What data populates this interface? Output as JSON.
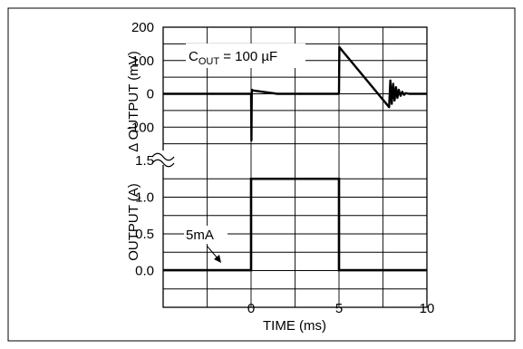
{
  "chart_data": [
    {
      "type": "line",
      "ylabel": "Δ OUTPUT (mV)",
      "annotation": {
        "main": "C",
        "sub": "OUT",
        "rest": " = 100 µF"
      },
      "xlim": [
        -5,
        10
      ],
      "ylim": [
        -200,
        200
      ],
      "yticks": [
        200,
        100,
        0,
        -100
      ],
      "ytick_labels": [
        "200",
        "100",
        "0",
        "-100"
      ],
      "grid": true,
      "series": [
        {
          "x": [
            -5,
            -0.05,
            0,
            0.02,
            0.04,
            0.06,
            0.1,
            1.5,
            4.98,
            5.0,
            5.02,
            7.85,
            7.92,
            8.0,
            8.08,
            8.16,
            8.24,
            8.32,
            8.4,
            8.5,
            8.6,
            8.7,
            8.8,
            9.0,
            10
          ],
          "y": [
            0,
            0,
            0,
            -140,
            5,
            12,
            10,
            0,
            0,
            5,
            140,
            -40,
            40,
            -30,
            30,
            -20,
            20,
            -12,
            12,
            -6,
            6,
            -3,
            2,
            0,
            0
          ]
        }
      ]
    },
    {
      "type": "line",
      "ylabel": "OUTPUT (A)",
      "xlabel": "TIME (ms)",
      "xlim": [
        -5,
        10
      ],
      "ylim": [
        -0.5,
        1.5
      ],
      "xticks": [
        0,
        5,
        10
      ],
      "xtick_labels": [
        "0",
        "5",
        "10"
      ],
      "yticks": [
        1.5,
        1.0,
        0.5,
        0.0
      ],
      "ytick_labels": [
        "1.5",
        "1.0",
        "0.5",
        "0.0"
      ],
      "grid": true,
      "annotation": "5mA",
      "series": [
        {
          "x": [
            -5,
            0,
            0,
            5,
            5,
            10
          ],
          "y": [
            0.005,
            0.005,
            1.25,
            1.25,
            0.005,
            0.005
          ]
        }
      ]
    }
  ]
}
